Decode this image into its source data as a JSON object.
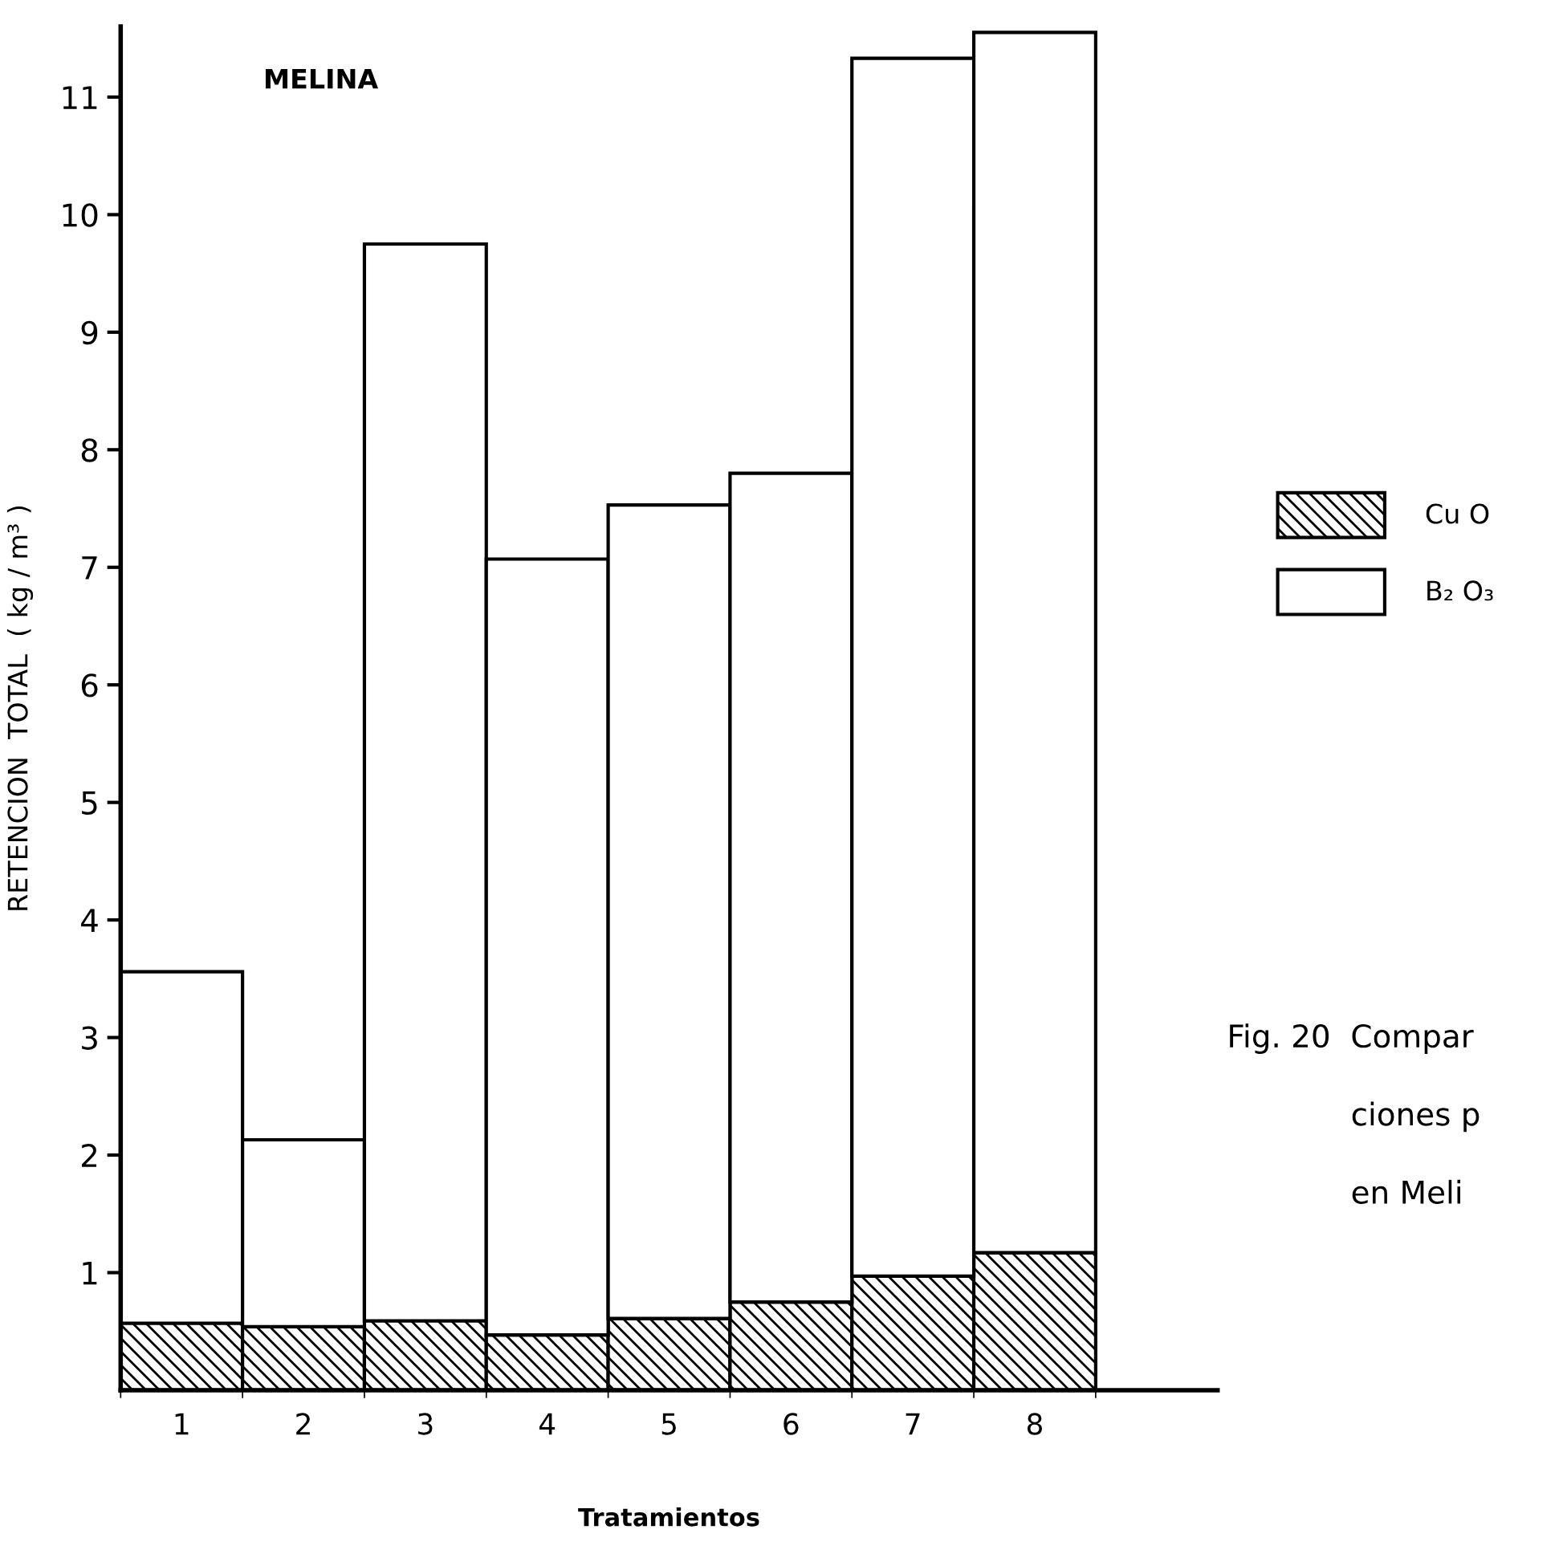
{
  "chart_data": {
    "type": "bar",
    "title": "MELINA",
    "xlabel": "Tratamientos",
    "ylabel": "RETENCION  TOTAL  ( kg / m³ )",
    "categories": [
      "1",
      "2",
      "3",
      "4",
      "5",
      "6",
      "7",
      "8"
    ],
    "stacked": true,
    "series": [
      {
        "name": "Cu O",
        "color": "#000000",
        "values": [
          0.57,
          0.54,
          0.59,
          0.47,
          0.61,
          0.75,
          0.97,
          1.17
        ]
      },
      {
        "name": "B₂ O₃",
        "color": "#ffffff",
        "values": [
          2.99,
          1.59,
          9.16,
          6.6,
          6.92,
          7.05,
          10.36,
          10.38
        ]
      }
    ],
    "ylim": [
      0,
      11.6
    ],
    "yticks": [
      1,
      2,
      3,
      4,
      5,
      6,
      7,
      8,
      9,
      10,
      11
    ],
    "grid": false,
    "legend": "right",
    "annotations": [
      "Fig. 20  Compar",
      "ciones p",
      "en Meli"
    ]
  }
}
